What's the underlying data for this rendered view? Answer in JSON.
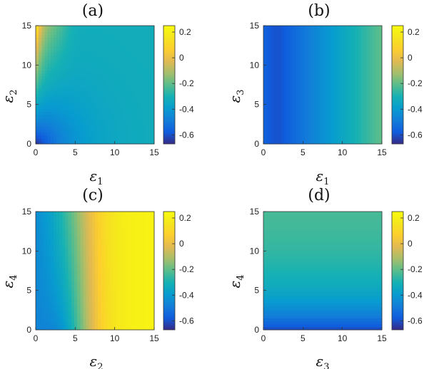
{
  "chart_data": [
    {
      "panel": "(a)",
      "type": "heatmap",
      "xlabel": "ε",
      "xlabel_sub": "1",
      "ylabel": "ε",
      "ylabel_sub": "2",
      "xlim": [
        0,
        15
      ],
      "ylim": [
        0,
        15
      ],
      "xticks": [
        "0",
        "5",
        "10",
        "15"
      ],
      "yticks": [
        "0",
        "5",
        "10",
        "15"
      ],
      "colorbar": {
        "range": [
          -0.67,
          0.25
        ],
        "ticks": [
          "0.2",
          "0",
          "-0.2",
          "-0.4",
          "-0.6"
        ]
      },
      "pattern": "low (about -0.65) near the origin, rising toward the upper-left corner (about 0.2 at ε1=0, ε2=15); most of the map near -0.3"
    },
    {
      "panel": "(b)",
      "type": "heatmap",
      "xlabel": "ε",
      "xlabel_sub": "1",
      "ylabel": "ε",
      "ylabel_sub": "3",
      "xlim": [
        0,
        15
      ],
      "ylim": [
        0,
        15
      ],
      "xticks": [
        "0",
        "5",
        "10",
        "15"
      ],
      "yticks": [
        "0",
        "5",
        "10",
        "15"
      ],
      "colorbar": {
        "range": [
          -0.67,
          0.25
        ],
        "ticks": [
          "0.2",
          "0",
          "-0.2",
          "-0.4",
          "-0.6"
        ]
      },
      "pattern": "varies only with ε1: about -0.55 at ε1=0, -0.6 at ε1≈2, rising to about -0.2 at ε1=15"
    },
    {
      "panel": "(c)",
      "type": "heatmap",
      "xlabel": "ε",
      "xlabel_sub": "2",
      "ylabel": "ε",
      "ylabel_sub": "4",
      "xlim": [
        0,
        15
      ],
      "ylim": [
        0,
        15
      ],
      "xticks": [
        "0",
        "5",
        "10",
        "15"
      ],
      "yticks": [
        "0",
        "5",
        "10",
        "15"
      ],
      "colorbar": {
        "range": [
          -0.67,
          0.25
        ],
        "ticks": [
          "0.2",
          "0",
          "-0.2",
          "-0.4",
          "-0.6"
        ]
      },
      "pattern": "about -0.5 near ε2≈3 at low ε4, rising with ε2 to about 0.05 at ε2=9 and 0.22 at ε2=15"
    },
    {
      "panel": "(d)",
      "type": "heatmap",
      "xlabel": "ε",
      "xlabel_sub": "3",
      "ylabel": "ε",
      "ylabel_sub": "4",
      "xlim": [
        0,
        15
      ],
      "ylim": [
        0,
        15
      ],
      "xticks": [
        "0",
        "5",
        "10",
        "15"
      ],
      "yticks": [
        "0",
        "5",
        "10",
        "15"
      ],
      "colorbar": {
        "range": [
          -0.67,
          0.25
        ],
        "ticks": [
          "0.2",
          "0",
          "-0.2",
          "-0.4",
          "-0.6"
        ]
      },
      "pattern": "varies only with ε4: about -0.62 at ε4=0 rising to about -0.22 at ε4=15"
    }
  ]
}
